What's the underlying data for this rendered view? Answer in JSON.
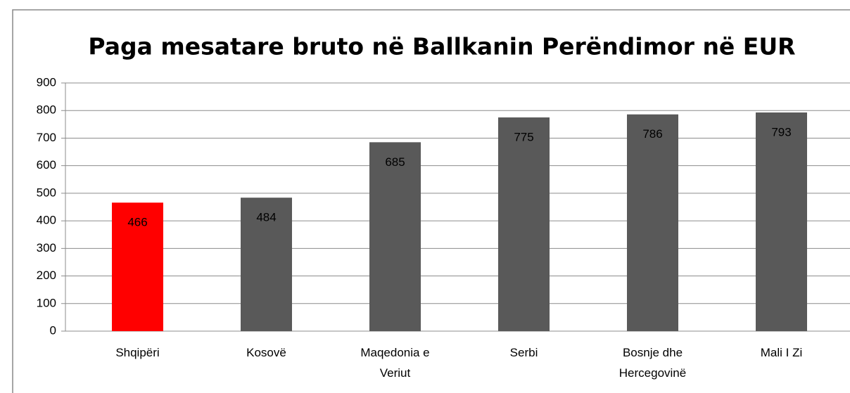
{
  "chart_data": {
    "type": "bar",
    "title": "Paga mesatare bruto në Ballkanin Perëndimor në EUR",
    "categories": [
      "Shqipëri",
      "Kosovë",
      "Maqedonia e Veriut",
      "Serbi",
      "Bosnje dhe Hercegovinë",
      "Mali I Zi"
    ],
    "values": [
      466,
      484,
      685,
      775,
      786,
      793
    ],
    "colors": [
      "#ff0000",
      "#595959",
      "#595959",
      "#595959",
      "#595959",
      "#595959"
    ],
    "ylim": [
      0,
      900
    ],
    "yticks": [
      0,
      100,
      200,
      300,
      400,
      500,
      600,
      700,
      800,
      900
    ],
    "grid": true
  }
}
